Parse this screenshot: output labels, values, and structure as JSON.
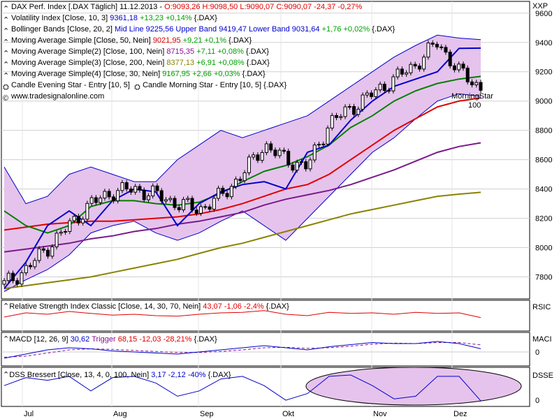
{
  "header": {
    "title": "DAX Perf. Index [.DAX  Täglich]  11.12.2013",
    "ohlc": "O:9093,26 H:9098,50 L:9090,07",
    "close_change": "C:9090,07 -24,37 -0,27%"
  },
  "legend": [
    {
      "name": "Volatility Index [Close, 10, 3]",
      "value": "9361,18",
      "change": "+13,23 +0,14%",
      "suffix": "{.DAX}",
      "value_color": "#0000cc"
    },
    {
      "name": "Bollinger Bands [Close, 20, 2]",
      "value": "Mid Line 9225,56 Upper Band 9419,47 Lower Band 9031,64",
      "change": "+1,76 +0,02%",
      "suffix": "{.DAX}",
      "value_color": "#0000cc"
    },
    {
      "name": "Moving Average Simple [Close, 50, Nein]",
      "value": "9021,95",
      "change": "+9,21 +0,1%",
      "suffix": "{.DAX}",
      "value_color": "#e00000"
    },
    {
      "name": "Moving Average Simple(2) [Close, 100, Nein]",
      "value": "8715,35",
      "change": "+7,11 +0,08%",
      "suffix": "{.DAX}",
      "value_color": "#8a1090"
    },
    {
      "name": "Moving Average Simple(3) [Close, 200, Nein]",
      "value": "8377,13",
      "change": "+6,91 +0,08%",
      "suffix": "{.DAX}",
      "value_color": "#8a8200"
    },
    {
      "name": "Moving Average Simple(4) [Close, 30, Nein]",
      "value": "9167,95",
      "change": "+2,66 +0,03%",
      "suffix": "{.DAX}",
      "value_color": "#00a000"
    }
  ],
  "candle_patterns": [
    "Candle Evening Star - Entry [10, 5]",
    "Candle Morning Star - Entry [10, 5] {.DAX}"
  ],
  "website": "www.tradesignalonline.com",
  "annotation": {
    "label": "MorningStar",
    "value": "100"
  },
  "colors": {
    "price": "#000000",
    "bollinger": "#0000cc",
    "bollinger_fill": "#e6c3ec",
    "ma50": "#e00000",
    "ma100": "#7a1a8a",
    "ma200": "#8a8200",
    "ma30": "#008000",
    "rsi": "#e00000",
    "macd": "#0000cc",
    "macd_trigger": "#8a1090",
    "dss": "#0000cc"
  },
  "panels": {
    "main": {
      "axis_label": "XXP",
      "ticks": [
        "9600",
        "9400",
        "9200",
        "9000",
        "8800",
        "8600",
        "8400",
        "8200",
        "8000",
        "7800"
      ]
    },
    "rsi": {
      "axis_label": "RSIC",
      "legend_name": "Relative Strength Index Classic [Close, 14, 30, 70, Nein]",
      "legend_value": "43,07 -1,06 -2,4%",
      "suffix": "{.DAX}"
    },
    "macd": {
      "axis_label": "MACI",
      "tick": "0",
      "legend_name": "MACD [12, 26, 9]",
      "legend_value": "30,62",
      "trigger_label": "Trigger",
      "trigger_value": "68,15 -12,03 -28,21%",
      "suffix": "{.DAX}"
    },
    "dss": {
      "axis_label": "DSSE",
      "tick": "0",
      "legend_name": "DSS Bressert [Close, 13, 4, 0, 100, Nein]",
      "legend_value": "3,17 -2,12 -40%",
      "suffix": "{.DAX}"
    }
  },
  "x_axis": {
    "months": [
      "Jul",
      "Aug",
      "Sep",
      "Okt",
      "Nov",
      "Dez"
    ]
  },
  "chart_data": [
    {
      "type": "line",
      "title": "DAX Perf. Index [.DAX  Täglich]",
      "x": [
        "Jul",
        "Jul",
        "Jul",
        "Jul",
        "Jul",
        "Aug",
        "Aug",
        "Aug",
        "Aug",
        "Sep",
        "Sep",
        "Sep",
        "Sep",
        "Okt",
        "Okt",
        "Okt",
        "Okt",
        "Nov",
        "Nov",
        "Nov",
        "Nov",
        "Dez",
        "Dez"
      ],
      "series": [
        {
          "name": "Close",
          "values": [
            7750,
            7850,
            8000,
            8150,
            8300,
            8380,
            8400,
            8360,
            8300,
            8260,
            8350,
            8500,
            8700,
            8600,
            8550,
            8850,
            8950,
            9050,
            9150,
            9250,
            9400,
            9200,
            9090
          ]
        },
        {
          "name": "Moving Average Simple [Close, 50, Nein]",
          "values": [
            8120,
            8140,
            8160,
            8170,
            8180,
            8180,
            8190,
            8200,
            8210,
            8230,
            8260,
            8300,
            8350,
            8400,
            8430,
            8500,
            8600,
            8700,
            8800,
            8880,
            8960,
            9000,
            9022
          ]
        },
        {
          "name": "Moving Average Simple(2) [Close, 100, Nein]",
          "values": [
            7970,
            7990,
            8010,
            8030,
            8060,
            8080,
            8110,
            8130,
            8160,
            8180,
            8210,
            8240,
            8290,
            8330,
            8360,
            8390,
            8430,
            8480,
            8530,
            8590,
            8650,
            8690,
            8715
          ]
        },
        {
          "name": "Moving Average Simple(3) [Close, 200, Nein]",
          "values": [
            7720,
            7740,
            7760,
            7780,
            7800,
            7830,
            7860,
            7890,
            7920,
            7960,
            8000,
            8030,
            8070,
            8110,
            8150,
            8190,
            8230,
            8260,
            8290,
            8320,
            8350,
            8365,
            8377
          ]
        },
        {
          "name": "Moving Average Simple(4) [Close, 30, Nein]",
          "values": [
            8250,
            8150,
            8100,
            8150,
            8280,
            8320,
            8320,
            8300,
            8290,
            8310,
            8370,
            8450,
            8520,
            8560,
            8620,
            8700,
            8820,
            8900,
            9000,
            9070,
            9120,
            9150,
            9168
          ]
        },
        {
          "name": "Volatility Index [Close, 10, 3]",
          "values": [
            7720,
            7900,
            8150,
            8250,
            8150,
            8320,
            8400,
            8380,
            8150,
            8300,
            8380,
            8430,
            8450,
            8400,
            8650,
            8700,
            8870,
            9000,
            9100,
            9150,
            9200,
            9360,
            9361
          ]
        }
      ],
      "bollinger_upper": [
        8550,
        8300,
        8350,
        8500,
        8550,
        8500,
        8450,
        8450,
        8600,
        8700,
        8800,
        8750,
        8800,
        8850,
        8900,
        9000,
        9100,
        9200,
        9300,
        9380,
        9450,
        9430,
        9419
      ],
      "bollinger_lower": [
        7700,
        7780,
        7850,
        7950,
        8100,
        8150,
        8180,
        8100,
        8050,
        8100,
        8180,
        8250,
        8150,
        8050,
        8200,
        8350,
        8500,
        8650,
        8750,
        8880,
        9000,
        9050,
        9032
      ],
      "ylim": [
        7650,
        9680
      ]
    },
    {
      "type": "line",
      "title": "Relative Strength Index Classic [Close, 14, 30, 70, Nein]",
      "series": [
        {
          "name": "RSI",
          "values": [
            45,
            60,
            55,
            65,
            58,
            52,
            55,
            50,
            48,
            55,
            60,
            62,
            68,
            55,
            50,
            62,
            58,
            60,
            55,
            62,
            58,
            60,
            43
          ]
        }
      ],
      "ylim": [
        0,
        100
      ]
    },
    {
      "type": "line",
      "title": "MACD [12, 26, 9]",
      "series": [
        {
          "name": "MACD",
          "values": [
            -60,
            -20,
            20,
            40,
            30,
            10,
            0,
            -10,
            -20,
            0,
            20,
            40,
            60,
            40,
            20,
            50,
            70,
            90,
            80,
            80,
            100,
            80,
            31
          ]
        },
        {
          "name": "Trigger",
          "values": [
            -50,
            -40,
            -10,
            20,
            30,
            25,
            15,
            5,
            -5,
            -5,
            5,
            20,
            40,
            45,
            35,
            40,
            55,
            75,
            85,
            80,
            90,
            90,
            68
          ]
        }
      ]
    },
    {
      "type": "line",
      "title": "DSS Bressert [Close, 13, 4, 0, 100, Nein]",
      "series": [
        {
          "name": "DSS",
          "values": [
            60,
            90,
            80,
            95,
            40,
            90,
            95,
            70,
            20,
            40,
            85,
            95,
            60,
            5,
            30,
            95,
            100,
            60,
            10,
            20,
            95,
            95,
            3
          ]
        }
      ],
      "ylim": [
        0,
        100
      ]
    }
  ]
}
